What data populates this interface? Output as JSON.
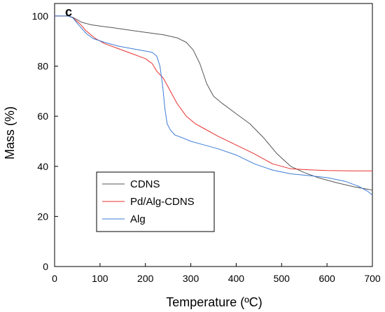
{
  "chart_data": {
    "type": "line",
    "panel_label": "c",
    "xlabel": "Temperature (ºC)",
    "ylabel": "Mass (%)",
    "xlim": [
      0,
      700
    ],
    "ylim": [
      0,
      105
    ],
    "xticks": [
      0,
      100,
      200,
      300,
      400,
      500,
      600,
      700
    ],
    "yticks": [
      0,
      20,
      40,
      60,
      80,
      100
    ],
    "grid": false,
    "legend_position": "bottom-left",
    "series": [
      {
        "name": "CDNS",
        "color": "#555555",
        "points": [
          [
            0,
            100
          ],
          [
            30,
            100
          ],
          [
            40,
            99.5
          ],
          [
            60,
            97.5
          ],
          [
            80,
            96.5
          ],
          [
            100,
            96
          ],
          [
            130,
            95.3
          ],
          [
            160,
            94.5
          ],
          [
            200,
            93.5
          ],
          [
            240,
            92.5
          ],
          [
            270,
            91.3
          ],
          [
            290,
            89.5
          ],
          [
            305,
            86.5
          ],
          [
            320,
            81
          ],
          [
            335,
            73
          ],
          [
            350,
            68
          ],
          [
            370,
            65
          ],
          [
            400,
            61
          ],
          [
            430,
            57
          ],
          [
            460,
            51.5
          ],
          [
            490,
            45
          ],
          [
            520,
            40
          ],
          [
            550,
            37.5
          ],
          [
            580,
            35.5
          ],
          [
            620,
            33.5
          ],
          [
            660,
            31.8
          ],
          [
            700,
            30.5
          ]
        ]
      },
      {
        "name": "Pd/Alg-CDNS",
        "color": "#e83030",
        "points": [
          [
            0,
            100
          ],
          [
            30,
            100
          ],
          [
            40,
            99.3
          ],
          [
            55,
            97
          ],
          [
            70,
            94
          ],
          [
            90,
            91
          ],
          [
            110,
            89
          ],
          [
            140,
            87
          ],
          [
            170,
            85
          ],
          [
            200,
            83
          ],
          [
            215,
            81
          ],
          [
            225,
            78
          ],
          [
            240,
            75
          ],
          [
            255,
            70
          ],
          [
            270,
            65
          ],
          [
            290,
            60
          ],
          [
            310,
            57
          ],
          [
            330,
            55
          ],
          [
            360,
            52
          ],
          [
            400,
            48.5
          ],
          [
            440,
            45
          ],
          [
            480,
            41
          ],
          [
            520,
            39
          ],
          [
            560,
            38.6
          ],
          [
            600,
            38.3
          ],
          [
            650,
            38.2
          ],
          [
            700,
            38.2
          ]
        ]
      },
      {
        "name": "Alg",
        "color": "#3c7cd6",
        "points": [
          [
            0,
            100
          ],
          [
            30,
            100
          ],
          [
            40,
            99.3
          ],
          [
            55,
            96
          ],
          [
            70,
            93
          ],
          [
            85,
            91
          ],
          [
            110,
            89.5
          ],
          [
            140,
            88
          ],
          [
            170,
            87
          ],
          [
            200,
            86
          ],
          [
            215,
            85.5
          ],
          [
            225,
            84
          ],
          [
            232,
            80
          ],
          [
            238,
            72
          ],
          [
            243,
            63
          ],
          [
            248,
            57
          ],
          [
            255,
            54.5
          ],
          [
            265,
            52.5
          ],
          [
            280,
            51.5
          ],
          [
            300,
            50
          ],
          [
            330,
            48.5
          ],
          [
            360,
            47
          ],
          [
            400,
            44.5
          ],
          [
            440,
            41
          ],
          [
            480,
            38.5
          ],
          [
            520,
            37
          ],
          [
            560,
            36.3
          ],
          [
            600,
            35.5
          ],
          [
            640,
            34
          ],
          [
            670,
            32
          ],
          [
            690,
            30
          ],
          [
            700,
            28.5
          ]
        ]
      }
    ]
  }
}
